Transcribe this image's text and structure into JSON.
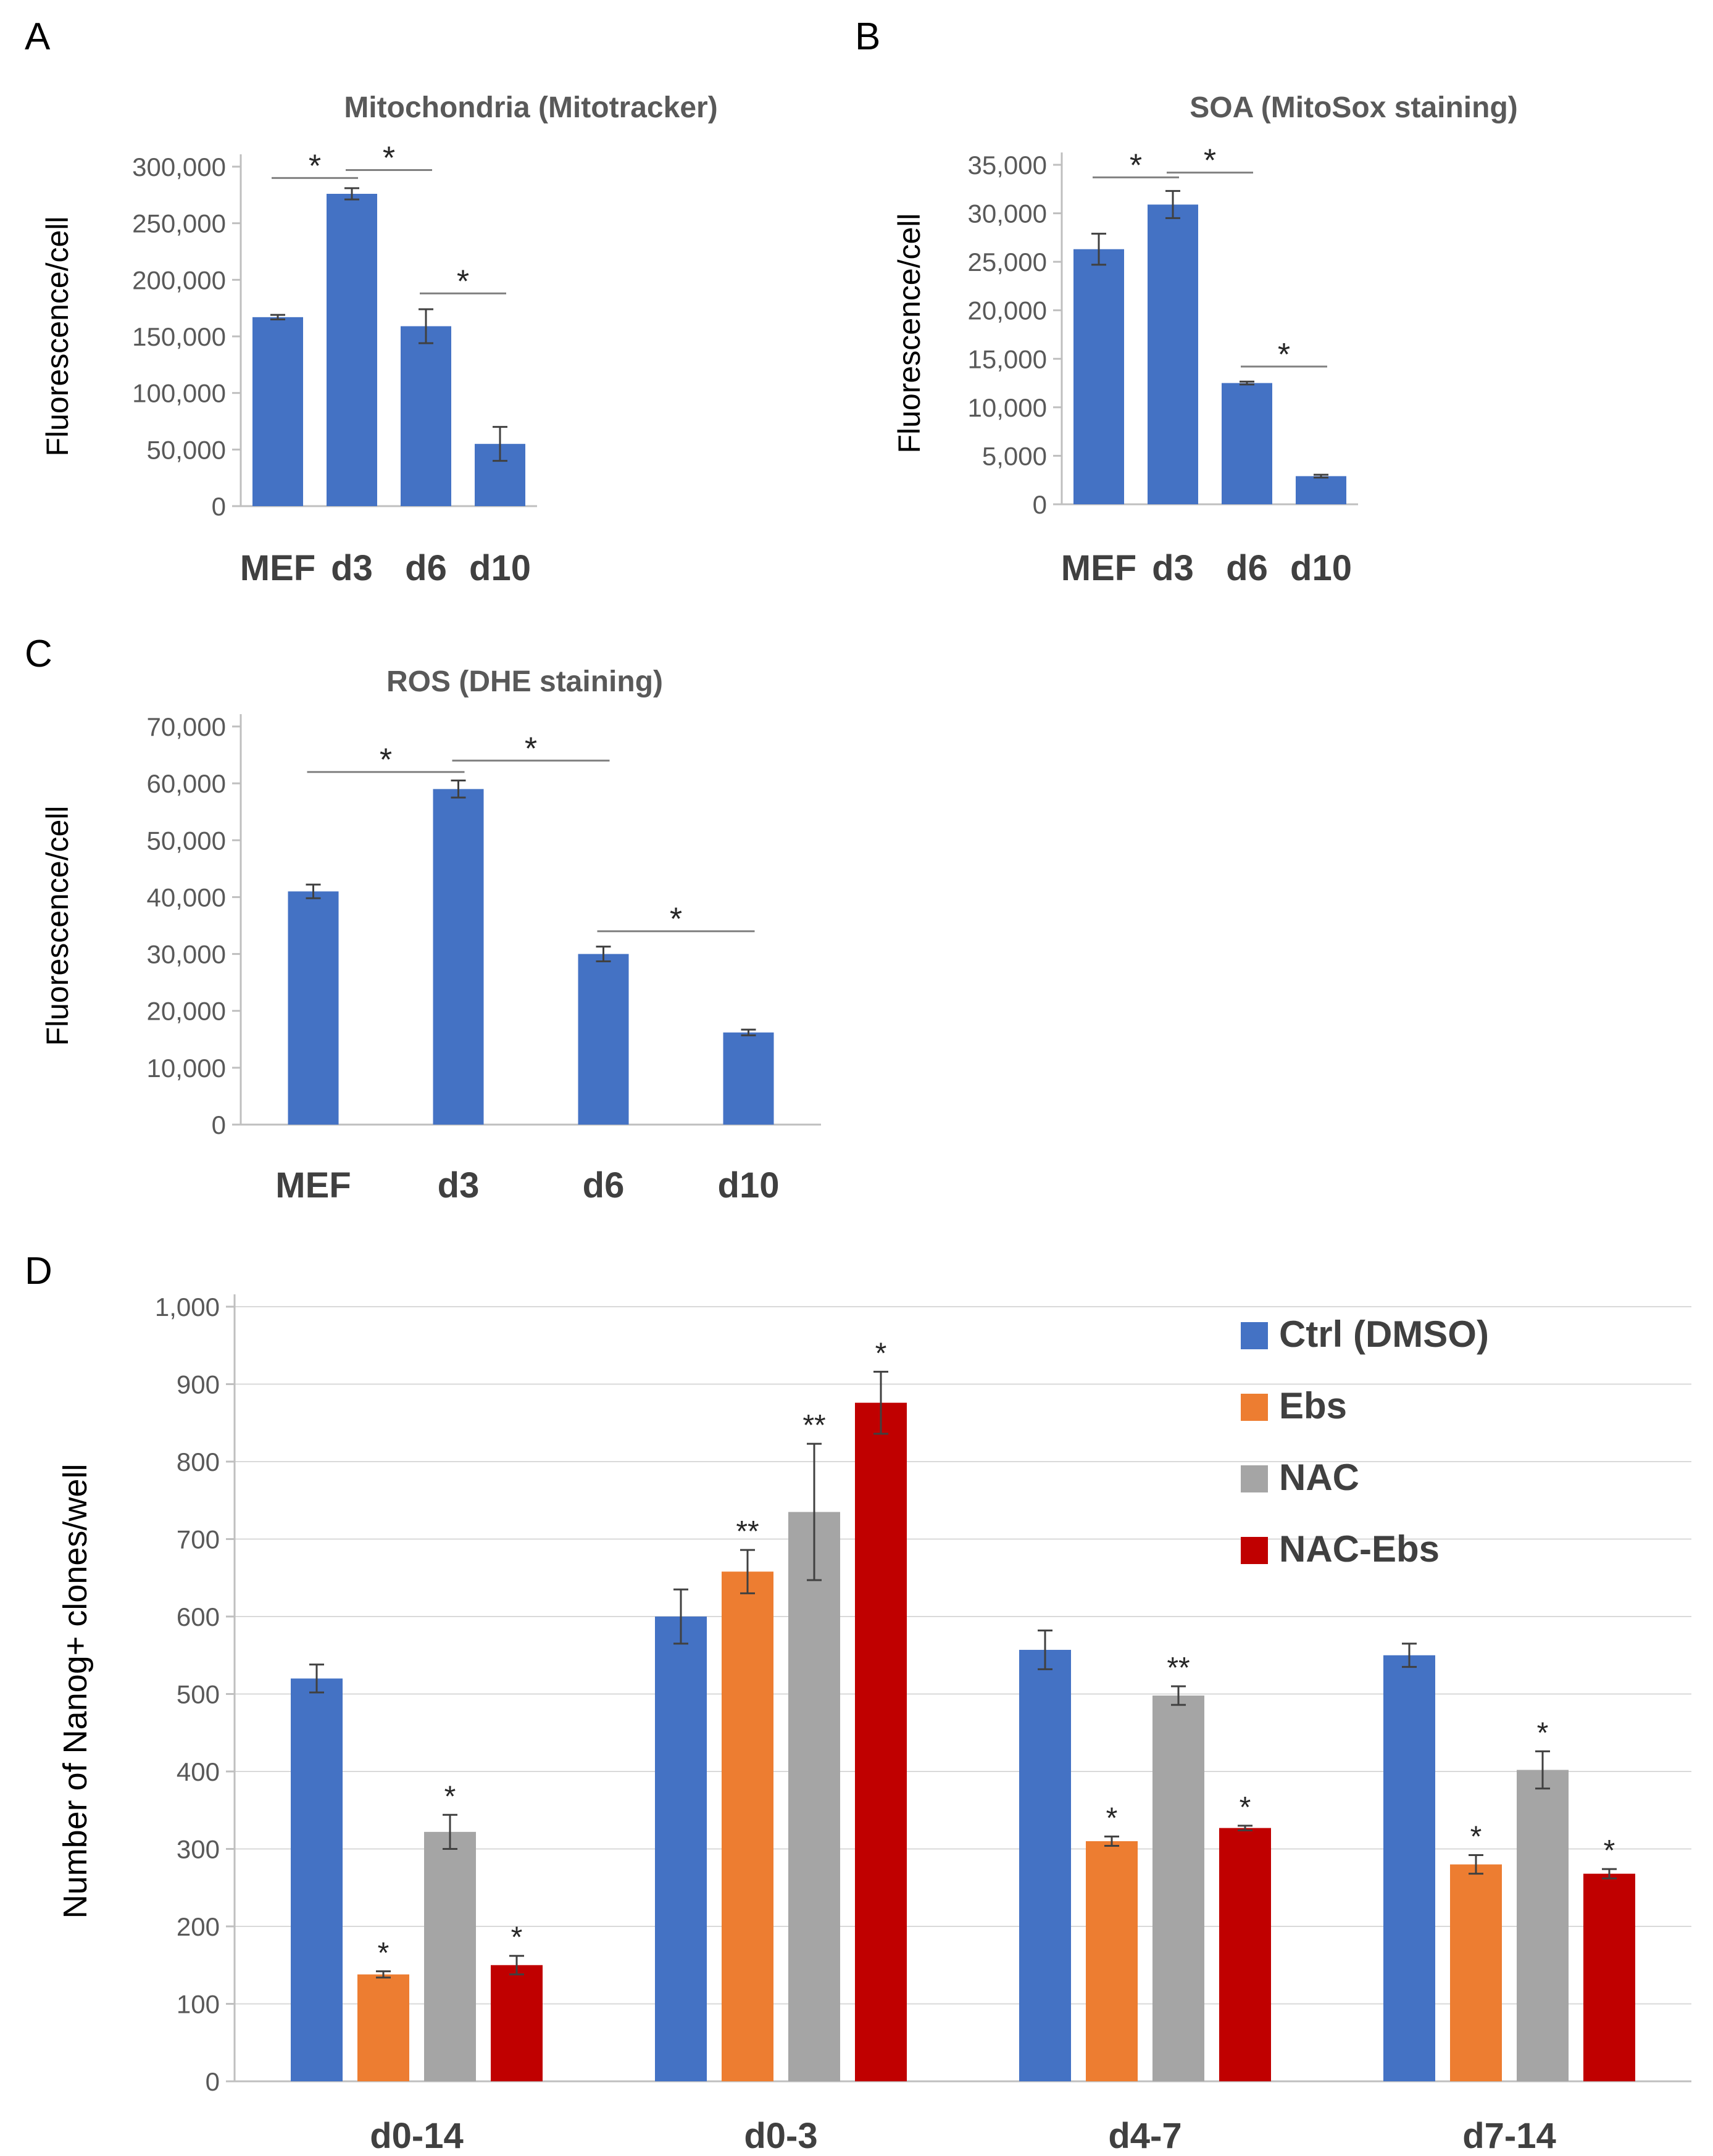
{
  "figure_colors": {
    "bar_blue": "#4472C4",
    "orange": "#ED7D31",
    "gray": "#A5A5A5",
    "red": "#C00000",
    "axis": "#BFBFBF",
    "text": "#595959",
    "title": "#595959",
    "errbar": "#404040",
    "sigline": "#808080"
  },
  "chart_data": [
    {
      "id": "A",
      "panel_label": "A",
      "type": "bar",
      "title": "Mitochondria  (Mitotracker)",
      "xlabel": "",
      "ylabel": "Fluorescence/cell",
      "categories": [
        "MEF",
        "d3",
        "d6",
        "d10"
      ],
      "values": [
        167000,
        276000,
        159000,
        55000
      ],
      "errors": [
        2000,
        5000,
        15000,
        15000
      ],
      "ylim": [
        0,
        300000
      ],
      "yticks": [
        0,
        50000,
        100000,
        150000,
        200000,
        250000,
        300000
      ],
      "ytick_labels": [
        "0",
        "50,000",
        "100,000",
        "150,000",
        "200,000",
        "250,000",
        "300,000"
      ],
      "significance": [
        {
          "from": 0,
          "to": 1,
          "y": 290000,
          "label": "*"
        },
        {
          "from": 1,
          "to": 2,
          "y": 297000,
          "label": "*"
        },
        {
          "from": 2,
          "to": 3,
          "y": 188000,
          "label": "*"
        }
      ]
    },
    {
      "id": "B",
      "panel_label": "B",
      "type": "bar",
      "title": "SOA (MitoSox staining)",
      "xlabel": "",
      "ylabel": "Fluorescence/cell",
      "categories": [
        "MEF",
        "d3",
        "d6",
        "d10"
      ],
      "values": [
        26300,
        30900,
        12500,
        2900
      ],
      "errors": [
        1600,
        1400,
        150,
        150
      ],
      "ylim": [
        0,
        35000
      ],
      "yticks": [
        0,
        5000,
        10000,
        15000,
        20000,
        25000,
        30000,
        35000
      ],
      "ytick_labels": [
        "0",
        "5,000",
        "10,000",
        "15,000",
        "20,000",
        "25,000",
        "30,000",
        "35,000"
      ],
      "significance": [
        {
          "from": 0,
          "to": 1,
          "y": 33700,
          "label": "*"
        },
        {
          "from": 1,
          "to": 2,
          "y": 34200,
          "label": "*"
        },
        {
          "from": 2,
          "to": 3,
          "y": 14200,
          "label": "*"
        }
      ]
    },
    {
      "id": "C",
      "panel_label": "C",
      "type": "bar",
      "title": "ROS (DHE staining)",
      "xlabel": "",
      "ylabel": "Fluorescence/cell",
      "categories": [
        "MEF",
        "d3",
        "d6",
        "d10"
      ],
      "values": [
        41000,
        59000,
        30000,
        16200
      ],
      "errors": [
        1200,
        1500,
        1300,
        500
      ],
      "ylim": [
        0,
        70000
      ],
      "yticks": [
        0,
        10000,
        20000,
        30000,
        40000,
        50000,
        60000,
        70000
      ],
      "ytick_labels": [
        "0",
        "10,000",
        "20,000",
        "30,000",
        "40,000",
        "50,000",
        "60,000",
        "70,000"
      ],
      "significance": [
        {
          "from": 0,
          "to": 1,
          "y": 62000,
          "label": "*"
        },
        {
          "from": 1,
          "to": 2,
          "y": 64000,
          "label": "*"
        },
        {
          "from": 2,
          "to": 3,
          "y": 34000,
          "label": "*"
        }
      ]
    },
    {
      "id": "D",
      "panel_label": "D",
      "type": "bar",
      "title": "",
      "xlabel": "",
      "ylabel": "Number of Nanog+ clones/well",
      "categories": [
        "d0-14",
        "d0-3",
        "d4-7",
        "d7-14"
      ],
      "ylim": [
        0,
        1000
      ],
      "yticks": [
        0,
        100,
        200,
        300,
        400,
        500,
        600,
        700,
        800,
        900,
        1000
      ],
      "ytick_labels": [
        "0",
        "100",
        "200",
        "300",
        "400",
        "500",
        "600",
        "700",
        "800",
        "900",
        "1,000"
      ],
      "legend_position": "top-right",
      "series": [
        {
          "name": "Ctrl (DMSO)",
          "color": "#4472C4",
          "values": [
            520,
            600,
            557,
            550
          ],
          "errors": [
            18,
            35,
            25,
            15
          ],
          "marks": [
            "",
            "",
            "",
            ""
          ]
        },
        {
          "name": "Ebs",
          "color": "#ED7D31",
          "values": [
            138,
            658,
            310,
            280
          ],
          "errors": [
            4,
            28,
            6,
            12
          ],
          "marks": [
            "*",
            "**",
            "*",
            "*"
          ]
        },
        {
          "name": "NAC",
          "color": "#A5A5A5",
          "values": [
            322,
            735,
            498,
            402
          ],
          "errors": [
            22,
            88,
            12,
            24
          ],
          "marks": [
            "*",
            "**",
            "**",
            "*"
          ]
        },
        {
          "name": "NAC-Ebs",
          "color": "#C00000",
          "values": [
            150,
            876,
            327,
            268
          ],
          "errors": [
            12,
            40,
            3,
            6
          ],
          "marks": [
            "*",
            "*",
            "*",
            "*"
          ]
        }
      ]
    }
  ]
}
